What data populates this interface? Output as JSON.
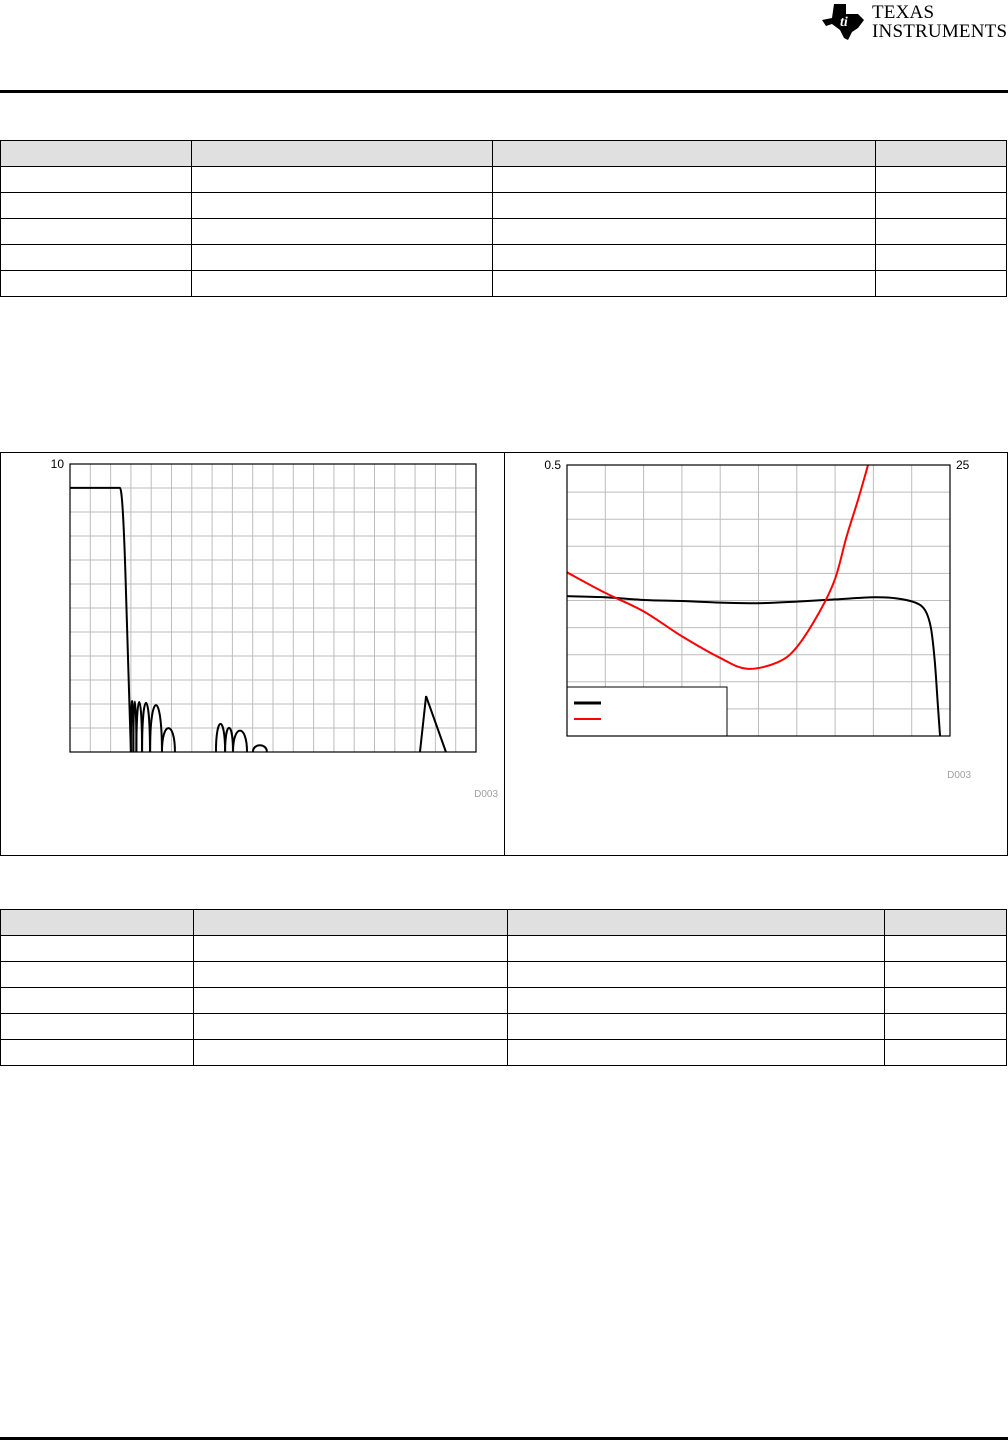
{
  "header": {
    "logo_text": "Texas Instruments",
    "logo_line1": "Texas",
    "logo_line2": "Instruments"
  },
  "table_top": {
    "columns": [
      "",
      "",
      "",
      ""
    ],
    "rows": [
      [
        "",
        "",
        "",
        ""
      ],
      [
        "",
        "",
        "",
        ""
      ],
      [
        "",
        "",
        "",
        ""
      ],
      [
        "",
        "",
        "",
        ""
      ],
      [
        "",
        "",
        "",
        ""
      ]
    ]
  },
  "table_bottom": {
    "columns": [
      "",
      "",
      "",
      ""
    ],
    "rows": [
      [
        "",
        "",
        "",
        ""
      ],
      [
        "",
        "",
        "",
        ""
      ],
      [
        "",
        "",
        "",
        ""
      ],
      [
        "",
        "",
        "",
        ""
      ],
      [
        "",
        "",
        "",
        ""
      ]
    ]
  },
  "chart_data": [
    {
      "type": "line",
      "title": "",
      "xlabel": "",
      "ylabel": "",
      "y_top_tick": "10",
      "ylim": [
        0,
        10
      ],
      "x_divisions": 20,
      "y_divisions": 12,
      "grid": true,
      "tag": "D003",
      "series_color": "#000000",
      "passband": {
        "level": 9.17,
        "flat_until_x": 2.46,
        "cutoff_x": 3.0
      },
      "stopband_lobes": [
        {
          "x_start": 3.0,
          "x_end": 3.12,
          "peak": 1.81
        },
        {
          "x_start": 3.12,
          "x_end": 3.27,
          "peak": 1.8
        },
        {
          "x_start": 3.27,
          "x_end": 3.55,
          "peak": 1.78
        },
        {
          "x_start": 3.55,
          "x_end": 3.94,
          "peak": 1.75
        },
        {
          "x_start": 3.94,
          "x_end": 4.53,
          "peak": 1.67
        },
        {
          "x_start": 4.53,
          "x_end": 5.17,
          "peak": 0.85
        },
        {
          "x_start": 7.19,
          "x_end": 7.64,
          "peak": 1.0
        },
        {
          "x_start": 7.64,
          "x_end": 8.03,
          "peak": 0.86
        },
        {
          "x_start": 8.03,
          "x_end": 8.72,
          "peak": 0.76
        },
        {
          "x_start": 9.01,
          "x_end": 9.7,
          "peak": 0.24
        },
        {
          "x_start": 17.24,
          "x_end": 18.52,
          "peak": 1.94,
          "peak_x": 17.54
        }
      ]
    },
    {
      "type": "line",
      "title": "",
      "xlabel": "",
      "ylabel_left": "",
      "ylabel_right": "",
      "y_left_top_tick": "0.5",
      "y_right_top_tick": "25",
      "ylim_left": [
        0,
        0.5
      ],
      "ylim_right": [
        0,
        25
      ],
      "x_divisions": 10,
      "y_divisions": 10,
      "grid": true,
      "legend": {
        "placement": "bottom-left",
        "entries": [
          {
            "name": "",
            "color": "#000000"
          },
          {
            "name": "",
            "color": "#ff0000"
          }
        ]
      },
      "tag": "D003",
      "series": [
        {
          "axis": "left",
          "color": "#000000",
          "points": [
            [
              0,
              0.258
            ],
            [
              1,
              0.256
            ],
            [
              2,
              0.251
            ],
            [
              3,
              0.249
            ],
            [
              4,
              0.246
            ],
            [
              5,
              0.245
            ],
            [
              6,
              0.248
            ],
            [
              7,
              0.252
            ],
            [
              8,
              0.256
            ],
            [
              8.6,
              0.254
            ],
            [
              9.1,
              0.246
            ],
            [
              9.35,
              0.232
            ],
            [
              9.5,
              0.2
            ],
            [
              9.6,
              0.14
            ],
            [
              9.68,
              0.06
            ],
            [
              9.74,
              0
            ]
          ]
        },
        {
          "axis": "right",
          "color": "#ff0000",
          "points": [
            [
              0,
              15.1
            ],
            [
              1,
              13.2
            ],
            [
              2,
              11.5
            ],
            [
              3,
              9.2
            ],
            [
              4,
              7.2
            ],
            [
              4.7,
              6.2
            ],
            [
              5.5,
              6.8
            ],
            [
              6,
              8.2
            ],
            [
              6.6,
              11.5
            ],
            [
              7.0,
              14.5
            ],
            [
              7.3,
              18.4
            ],
            [
              7.6,
              21.8
            ],
            [
              7.86,
              25
            ]
          ]
        }
      ]
    }
  ]
}
